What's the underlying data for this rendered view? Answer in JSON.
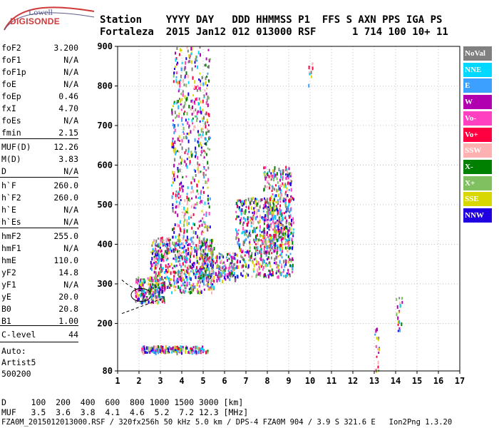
{
  "logo": {
    "top": "Lowell",
    "main": "DIGISONDE"
  },
  "header": {
    "line1": "Station    YYYY DAY   DDD HHMMSS P1  FFS S AXN PPS IGA PS",
    "line2": "Fortaleza  2015 Jan12 012 013000 RSF      1 714 100 10+ 11"
  },
  "params": [
    {
      "label": "foF2",
      "value": "3.200"
    },
    {
      "label": "foF1",
      "value": "N/A"
    },
    {
      "label": "foF1p",
      "value": "N/A"
    },
    {
      "label": "foE",
      "value": "N/A"
    },
    {
      "label": "foEp",
      "value": "0.46"
    },
    {
      "label": "fxI",
      "value": "4.70"
    },
    {
      "label": "foEs",
      "value": "N/A"
    },
    {
      "label": "fmin",
      "value": "2.15"
    },
    {
      "label": "MUF(D)",
      "value": "12.26"
    },
    {
      "label": "M(D)",
      "value": "3.83"
    },
    {
      "label": "D",
      "value": "N/A"
    },
    {
      "label": "h`F",
      "value": "260.0"
    },
    {
      "label": "h`F2",
      "value": "260.0"
    },
    {
      "label": "h`E",
      "value": "N/A"
    },
    {
      "label": "h`Es",
      "value": "N/A"
    },
    {
      "label": "hmF2",
      "value": "255.0"
    },
    {
      "label": "hmF1",
      "value": "N/A"
    },
    {
      "label": "hmE",
      "value": "110.0"
    },
    {
      "label": "yF2",
      "value": "14.8"
    },
    {
      "label": "yF1",
      "value": "N/A"
    },
    {
      "label": "yE",
      "value": "20.0"
    },
    {
      "label": "B0",
      "value": "20.8"
    },
    {
      "label": "B1",
      "value": "1.00"
    },
    {
      "label": "C-level",
      "value": "44"
    }
  ],
  "auto": [
    "Auto:",
    "Artist5",
    "500200"
  ],
  "legend": [
    {
      "label": "NoVal",
      "color": "#808080"
    },
    {
      "label": "NNE",
      "color": "#00d8ff"
    },
    {
      "label": "E",
      "color": "#3ba0ff"
    },
    {
      "label": "W",
      "color": "#b000b0"
    },
    {
      "label": "Vo-",
      "color": "#ff40c0"
    },
    {
      "label": "Vo+",
      "color": "#ff0040"
    },
    {
      "label": "SSW",
      "color": "#ffb0b0"
    },
    {
      "label": "X-",
      "color": "#008000"
    },
    {
      "label": "X+",
      "color": "#80c060"
    },
    {
      "label": "SSE",
      "color": "#d8d800"
    },
    {
      "label": "NNW",
      "color": "#2000e0"
    }
  ],
  "bottom": {
    "d_row": "D     100  200  400  600  800 1000 1500 3000 [km]",
    "muf_row": "MUF   3.5  3.6  3.8  4.1  4.6  5.2  7.2 12.3 [MHz]",
    "footer": "FZA0M_2015012013000.RSF / 320fx256h 50 kHz 5.0 km / DPS-4 FZA0M 904 / 3.9 S 321.6 E   Ion2Png 1.3.20"
  },
  "chart_data": {
    "type": "scatter",
    "title": "",
    "xlabel": "",
    "ylabel": "",
    "xlim": [
      1,
      17
    ],
    "ylim": [
      80,
      900
    ],
    "x_ticks": [
      1,
      2,
      3,
      4,
      5,
      6,
      7,
      8,
      9,
      10,
      11,
      12,
      13,
      14,
      15,
      16,
      17
    ],
    "y_ticks": [
      80,
      200,
      300,
      400,
      500,
      600,
      700,
      800,
      900
    ],
    "grid": "dotted",
    "echo_clusters": [
      {
        "x": [
          1.8,
          3.2
        ],
        "y": [
          255,
          320
        ],
        "n": 200
      },
      {
        "x": [
          2.5,
          5.5
        ],
        "y": [
          280,
          420
        ],
        "n": 600
      },
      {
        "x": [
          3.5,
          5.3
        ],
        "y": [
          420,
          900
        ],
        "n": 500
      },
      {
        "x": [
          4.8,
          6.5
        ],
        "y": [
          310,
          380
        ],
        "n": 200
      },
      {
        "x": [
          6.5,
          9.2
        ],
        "y": [
          320,
          520
        ],
        "n": 600
      },
      {
        "x": [
          7.8,
          9.1
        ],
        "y": [
          390,
          600
        ],
        "n": 300
      },
      {
        "x": [
          2.1,
          5.2
        ],
        "y": [
          128,
          145
        ],
        "n": 200
      },
      {
        "x": [
          13.0,
          13.2
        ],
        "y": [
          80,
          195
        ],
        "n": 20
      },
      {
        "x": [
          14.0,
          14.3
        ],
        "y": [
          180,
          270
        ],
        "n": 20
      },
      {
        "x": [
          9.9,
          10.1
        ],
        "y": [
          800,
          870
        ],
        "n": 8
      }
    ]
  }
}
